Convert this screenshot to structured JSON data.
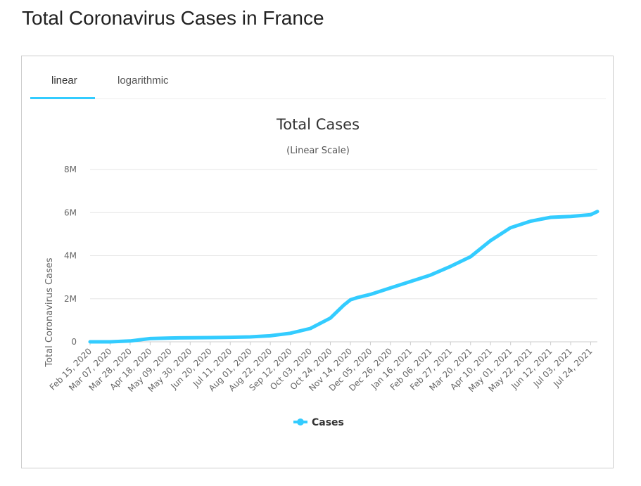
{
  "page": {
    "title": "Total Coronavirus Cases in France"
  },
  "tabs": {
    "linear": "linear",
    "logarithmic": "logarithmic",
    "active": "linear"
  },
  "colors": {
    "series": "#33ccff",
    "grid": "#e6e6e6",
    "axis_text": "#666666"
  },
  "chart_data": {
    "type": "line",
    "title": "Total Cases",
    "subtitle": "(Linear Scale)",
    "ylabel": "Total Coronavirus Cases",
    "xlabel": "",
    "ylim": [
      0,
      8000000
    ],
    "yticks": [
      0,
      2000000,
      4000000,
      6000000,
      8000000
    ],
    "ytick_labels": [
      "0",
      "2M",
      "4M",
      "6M",
      "8M"
    ],
    "xtick_labels": [
      "Feb 15, 2020",
      "Mar 07, 2020",
      "Mar 28, 2020",
      "Apr 18, 2020",
      "May 09, 2020",
      "May 30, 2020",
      "Jun 20, 2020",
      "Jul 11, 2020",
      "Aug 01, 2020",
      "Aug 22, 2020",
      "Sep 12, 2020",
      "Oct 03, 2020",
      "Oct 24, 2020",
      "Nov 14, 2020",
      "Dec 05, 2020",
      "Dec 26, 2020",
      "Jan 16, 2021",
      "Feb 06, 2021",
      "Feb 27, 2021",
      "Mar 20, 2021",
      "Apr 10, 2021",
      "May 01, 2021",
      "May 22, 2021",
      "Jun 12, 2021",
      "Jul 03, 2021",
      "Jul 24, 2021"
    ],
    "grid": true,
    "legend_position": "bottom-center",
    "series": [
      {
        "name": "Cases",
        "x": [
          "Feb 15, 2020",
          "Mar 07, 2020",
          "Mar 28, 2020",
          "Apr 18, 2020",
          "May 09, 2020",
          "May 30, 2020",
          "Jun 20, 2020",
          "Jul 11, 2020",
          "Aug 01, 2020",
          "Aug 22, 2020",
          "Sep 12, 2020",
          "Oct 03, 2020",
          "Oct 24, 2020",
          "Nov 07, 2020",
          "Nov 14, 2020",
          "Nov 21, 2020",
          "Dec 05, 2020",
          "Dec 26, 2020",
          "Jan 16, 2021",
          "Feb 06, 2021",
          "Feb 27, 2021",
          "Mar 20, 2021",
          "Apr 10, 2021",
          "May 01, 2021",
          "May 22, 2021",
          "Jun 12, 2021",
          "Jul 03, 2021",
          "Jul 24, 2021",
          "Jul 31, 2021"
        ],
        "values": [
          12,
          1000,
          38000,
          150000,
          175000,
          188000,
          197000,
          210000,
          230000,
          280000,
          400000,
          620000,
          1100000,
          1700000,
          1950000,
          2050000,
          2200000,
          2500000,
          2800000,
          3100000,
          3500000,
          3950000,
          4700000,
          5300000,
          5600000,
          5780000,
          5820000,
          5900000,
          6050000
        ]
      }
    ]
  }
}
